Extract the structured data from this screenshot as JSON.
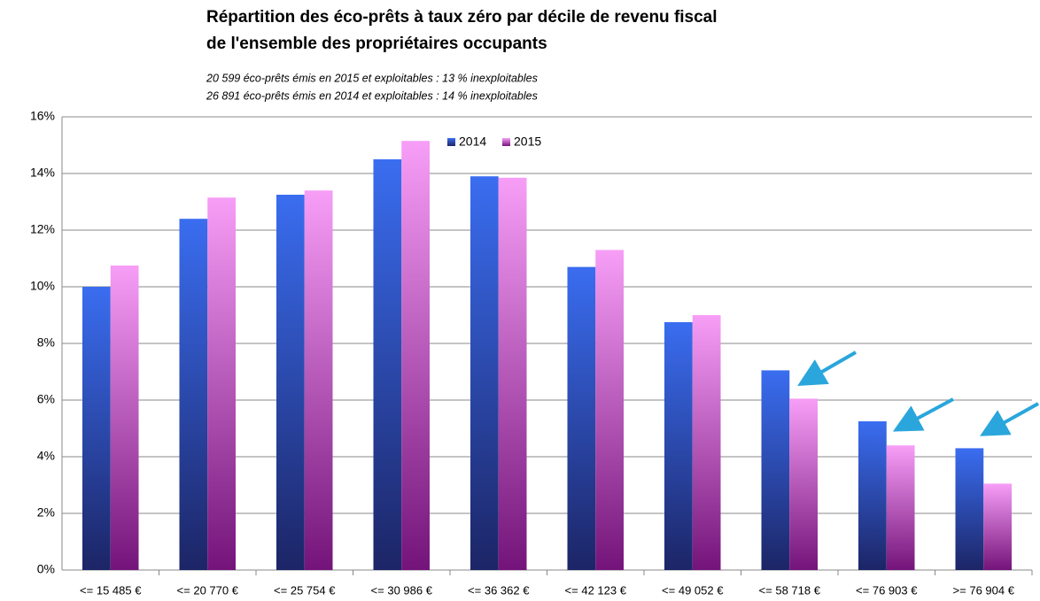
{
  "chart_data": {
    "type": "bar",
    "title": "Répartition des éco-prêts à taux zéro par décile de revenu fiscal",
    "title_line2": "de l'ensemble des propriétaires occupants",
    "subtitle": "20 599 éco-prêts émis en 2015 et exploitables : 13 % inexploitables",
    "subtitle_line2": "26 891 éco-prêts émis en 2014 et exploitables : 14 % inexploitables",
    "categories": [
      "<= 15 485 €",
      "<= 20 770 €",
      "<= 25 754 €",
      "<= 30 986 €",
      "<= 36 362 €",
      "<= 42 123 €",
      "<= 49 052 €",
      "<= 58 718 €",
      "<= 76 903 €",
      ">= 76 904 €"
    ],
    "series": [
      {
        "name": "2014",
        "color": "#3a6df0",
        "values": [
          10.0,
          12.4,
          13.25,
          14.5,
          13.9,
          10.7,
          8.75,
          7.05,
          5.25,
          4.3
        ]
      },
      {
        "name": "2015",
        "color": "#f79ef7",
        "values": [
          10.75,
          13.15,
          13.4,
          15.15,
          13.85,
          11.3,
          9.0,
          6.05,
          4.4,
          3.05
        ]
      }
    ],
    "ylim": [
      0,
      16
    ],
    "yticks": [
      {
        "value": 0,
        "label": "0%"
      },
      {
        "value": 2,
        "label": "2%"
      },
      {
        "value": 4,
        "label": "4%"
      },
      {
        "value": 6,
        "label": "6%"
      },
      {
        "value": 8,
        "label": "8%"
      },
      {
        "value": 10,
        "label": "10%"
      },
      {
        "value": 12,
        "label": "12%"
      },
      {
        "value": 14,
        "label": "14%"
      },
      {
        "value": 16,
        "label": "16%"
      }
    ],
    "grid": true
  }
}
